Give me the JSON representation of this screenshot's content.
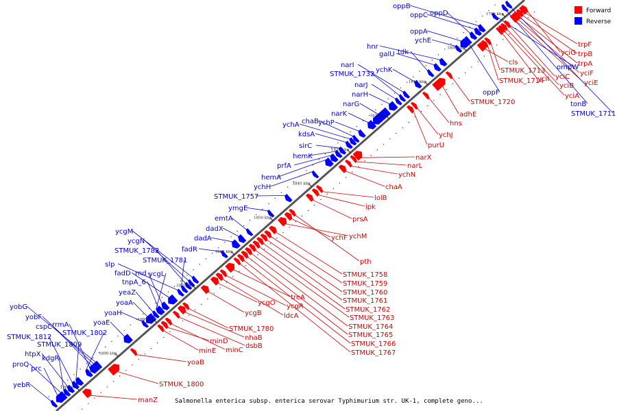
{
  "title": "Salmonella enterica subsp. enterica serovar Typhimurium str. UK-1, complete geno...",
  "legend": [
    {
      "label": "Forward",
      "color": "#ff0000"
    },
    {
      "label": "Reverse",
      "color": "#0000ff"
    }
  ],
  "colors": {
    "forward": "#ff0000",
    "reverse": "#0000ff",
    "label_forward": "#d40000",
    "label_reverse": "#0000d0",
    "backbone": "#555555"
  },
  "axis": {
    "start_kbp": 1785,
    "end_kbp": 1906,
    "ticks": [
      {
        "kbp": 1790,
        "label": "1790 kbp"
      },
      {
        "kbp": 1800,
        "label": "1800 kbp"
      },
      {
        "kbp": 1810,
        "label": "1810 kbp"
      },
      {
        "kbp": 1820,
        "label": "1820 kbp"
      },
      {
        "kbp": 1830,
        "label": "1830 kbp"
      },
      {
        "kbp": 1840,
        "label": "1840 kbp"
      },
      {
        "kbp": 1850,
        "label": "1850 kbp"
      },
      {
        "kbp": 1860,
        "label": "1860 kbp"
      },
      {
        "kbp": 1870,
        "label": "1870 kbp"
      },
      {
        "kbp": 1880,
        "label": "1880 kbp"
      },
      {
        "kbp": 1890,
        "label": "1890 kbp"
      },
      {
        "kbp": 1900,
        "label": "1900 kbp"
      }
    ]
  },
  "forward_genes": [
    {
      "name": "trpF",
      "kbp": 1786.5,
      "len": 0.6
    },
    {
      "name": "yciG",
      "kbp": 1786.0,
      "len": 0.4
    },
    {
      "name": "trpB",
      "kbp": 1787.2,
      "len": 0.8
    },
    {
      "name": "trpA",
      "kbp": 1787.9,
      "len": 0.8
    },
    {
      "name": "yciF",
      "kbp": 1788.4,
      "len": 0.5
    },
    {
      "name": "yciE",
      "kbp": 1788.9,
      "len": 0.5
    },
    {
      "name": "cls",
      "kbp": 1797.0,
      "len": 1.4
    },
    {
      "name": "yciC",
      "kbp": 1790.5,
      "len": 0.7
    },
    {
      "name": "yciB",
      "kbp": 1791.3,
      "len": 0.5
    },
    {
      "name": "yciA",
      "kbp": 1791.9,
      "len": 0.4
    },
    {
      "name": "yciI",
      "kbp": 1792.5,
      "len": 0.3
    },
    {
      "name": "STMUK_1713",
      "kbp": 1795.5,
      "len": 0.6
    },
    {
      "name": "STMUK_1714",
      "kbp": 1796.3,
      "len": 0.6
    },
    {
      "name": "STMUK_1720",
      "kbp": 1805.5,
      "len": 0.3
    },
    {
      "name": "adhE",
      "kbp": 1808.0,
      "len": 2.6
    },
    {
      "name": "hns",
      "kbp": 1811.5,
      "len": 0.4
    },
    {
      "name": "ychJ",
      "kbp": 1814.5,
      "len": 0.4
    },
    {
      "name": "purU",
      "kbp": 1815.5,
      "len": 0.8
    },
    {
      "name": "narX",
      "kbp": 1829.0,
      "len": 1.6
    },
    {
      "name": "narL",
      "kbp": 1830.2,
      "len": 0.6
    },
    {
      "name": "ychN",
      "kbp": 1831.5,
      "len": 0.4
    },
    {
      "name": "chaA",
      "kbp": 1833.0,
      "len": 1.0
    },
    {
      "name": "lolB",
      "kbp": 1839.0,
      "len": 0.6
    },
    {
      "name": "ipk",
      "kbp": 1840.0,
      "len": 0.8
    },
    {
      "name": "prsA",
      "kbp": 1841.5,
      "len": 0.9
    },
    {
      "name": "ychF",
      "kbp": 1847.0,
      "len": 1.0
    },
    {
      "name": "ychM",
      "kbp": 1848.5,
      "len": 1.4
    },
    {
      "name": "pth",
      "kbp": 1846.0,
      "len": 0.6
    },
    {
      "name": "STMUK_1758",
      "kbp": 1851.0,
      "len": 1.0
    },
    {
      "name": "STMUK_1759",
      "kbp": 1852.3,
      "len": 0.8
    },
    {
      "name": "STMUK_1760",
      "kbp": 1853.3,
      "len": 0.8
    },
    {
      "name": "STMUK_1761",
      "kbp": 1854.3,
      "len": 0.8
    },
    {
      "name": "STMUK_1762",
      "kbp": 1855.3,
      "len": 0.8
    },
    {
      "name": "STMUK_1763",
      "kbp": 1856.3,
      "len": 0.8
    },
    {
      "name": "STMUK_1764",
      "kbp": 1857.3,
      "len": 0.8
    },
    {
      "name": "STMUK_1765",
      "kbp": 1858.3,
      "len": 0.8
    },
    {
      "name": "STMUK_1766",
      "kbp": 1859.3,
      "len": 0.8
    },
    {
      "name": "STMUK_1767",
      "kbp": 1860.3,
      "len": 0.6
    },
    {
      "name": "treA",
      "kbp": 1862.0,
      "len": 1.6
    },
    {
      "name": "ycgR",
      "kbp": 1863.8,
      "len": 0.7
    },
    {
      "name": "ldcA",
      "kbp": 1864.8,
      "len": 0.9
    },
    {
      "name": "ycgO",
      "kbp": 1866.0,
      "len": 1.2
    },
    {
      "name": "ycgB",
      "kbp": 1868.5,
      "len": 1.2
    },
    {
      "name": "STMUK_1780",
      "kbp": 1873.5,
      "len": 0.5
    },
    {
      "name": "nhaB",
      "kbp": 1874.5,
      "len": 1.2
    },
    {
      "name": "dsbB",
      "kbp": 1876.0,
      "len": 0.5
    },
    {
      "name": "minC",
      "kbp": 1878.0,
      "len": 0.7
    },
    {
      "name": "minD",
      "kbp": 1879.0,
      "len": 0.8
    },
    {
      "name": "minE",
      "kbp": 1880.0,
      "len": 0.3
    },
    {
      "name": "yoaB",
      "kbp": 1887.0,
      "len": 0.4
    },
    {
      "name": "STMUK_1800",
      "kbp": 1892.0,
      "len": 2.2
    },
    {
      "name": "manZ",
      "kbp": 1899.0,
      "len": 1.5
    }
  ],
  "reverse_genes": [
    {
      "name": "oppB",
      "kbp": 1795.0,
      "len": 0.9
    },
    {
      "name": "oppC",
      "kbp": 1796.0,
      "len": 0.9
    },
    {
      "name": "oppD",
      "kbp": 1797.2,
      "len": 0.9
    },
    {
      "name": "oppA",
      "kbp": 1799.5,
      "len": 1.6
    },
    {
      "name": "ychE",
      "kbp": 1801.0,
      "len": 0.6
    },
    {
      "name": "oppF",
      "kbp": 1798.5,
      "len": 0.8
    },
    {
      "name": "ompW",
      "kbp": 1791.5,
      "len": 0.6
    },
    {
      "name": "tonB",
      "kbp": 1789.0,
      "len": 0.7
    },
    {
      "name": "STMUK_1711",
      "kbp": 1788.0,
      "len": 0.5
    },
    {
      "name": "hnr",
      "kbp": 1805.0,
      "len": 1.0
    },
    {
      "name": "galU",
      "kbp": 1806.5,
      "len": 0.9
    },
    {
      "name": "tdk",
      "kbp": 1808.2,
      "len": 0.6
    },
    {
      "name": "ychK",
      "kbp": 1811.5,
      "len": 0.9
    },
    {
      "name": "narI",
      "kbp": 1814.5,
      "len": 0.7
    },
    {
      "name": "STMUK_1732",
      "kbp": 1815.5,
      "len": 0.4
    },
    {
      "name": "narJ",
      "kbp": 1816.5,
      "len": 0.7
    },
    {
      "name": "narH",
      "kbp": 1818.0,
      "len": 1.5
    },
    {
      "name": "narG",
      "kbp": 1821.0,
      "len": 3.8
    },
    {
      "name": "narK",
      "kbp": 1823.5,
      "len": 1.4
    },
    {
      "name": "ychP",
      "kbp": 1826.0,
      "len": 0.9
    },
    {
      "name": "chaB",
      "kbp": 1827.5,
      "len": 0.3
    },
    {
      "name": "ychA",
      "kbp": 1828.3,
      "len": 0.8
    },
    {
      "name": "kdsA",
      "kbp": 1829.3,
      "len": 0.8
    },
    {
      "name": "sirC",
      "kbp": 1831.0,
      "len": 0.8
    },
    {
      "name": "hemK",
      "kbp": 1832.0,
      "len": 0.8
    },
    {
      "name": "prfA",
      "kbp": 1833.2,
      "len": 1.1
    },
    {
      "name": "hemA",
      "kbp": 1834.5,
      "len": 1.3
    },
    {
      "name": "ychH",
      "kbp": 1838.0,
      "len": 0.3
    },
    {
      "name": "STMUK_1757",
      "kbp": 1845.0,
      "len": 0.9
    },
    {
      "name": "ymgE",
      "kbp": 1849.5,
      "len": 0.3
    },
    {
      "name": "emtA",
      "kbp": 1855.0,
      "len": 0.6
    },
    {
      "name": "dadX",
      "kbp": 1857.0,
      "len": 1.1
    },
    {
      "name": "dadA",
      "kbp": 1858.6,
      "len": 1.3
    },
    {
      "name": "fadR",
      "kbp": 1861.5,
      "len": 0.7
    },
    {
      "name": "ycgM",
      "kbp": 1869.0,
      "len": 0.7
    },
    {
      "name": "ycgN",
      "kbp": 1870.0,
      "len": 0.4
    },
    {
      "name": "STMUK_1782",
      "kbp": 1870.8,
      "len": 0.6
    },
    {
      "name": "STMUK_1781",
      "kbp": 1871.8,
      "len": 0.7
    },
    {
      "name": "slp",
      "kbp": 1872.8,
      "len": 0.6
    },
    {
      "name": "fadD",
      "kbp": 1875.0,
      "len": 1.7
    },
    {
      "name": "rnd",
      "kbp": 1876.8,
      "len": 1.1
    },
    {
      "name": "tnpA_6",
      "kbp": 1877.8,
      "len": 0.4
    },
    {
      "name": "ycgL",
      "kbp": 1878.3,
      "len": 0.3
    },
    {
      "name": "yeaZ",
      "kbp": 1879.2,
      "len": 0.7
    },
    {
      "name": "yoaA",
      "kbp": 1880.6,
      "len": 1.9
    },
    {
      "name": "yoaH",
      "kbp": 1882.0,
      "len": 0.3
    },
    {
      "name": "yoaE",
      "kbp": 1886.5,
      "len": 1.5
    },
    {
      "name": "yobG",
      "kbp": 1894.0,
      "len": 0.3
    },
    {
      "name": "yobF",
      "kbp": 1894.5,
      "len": 0.3
    },
    {
      "name": "cspC",
      "kbp": 1895.0,
      "len": 0.3
    },
    {
      "name": "rrmA",
      "kbp": 1895.5,
      "len": 0.8
    },
    {
      "name": "STMUK_1802",
      "kbp": 1896.5,
      "len": 0.9
    },
    {
      "name": "STMUK_1812",
      "kbp": 1900.0,
      "len": 0.9
    },
    {
      "name": "STMUK_1809",
      "kbp": 1899.0,
      "len": 1.1
    },
    {
      "name": "htpX",
      "kbp": 1901.2,
      "len": 0.9
    },
    {
      "name": "kdgR",
      "kbp": 1902.2,
      "len": 0.8
    },
    {
      "name": "proQ",
      "kbp": 1903.0,
      "len": 0.7
    },
    {
      "name": "prc",
      "kbp": 1903.8,
      "len": 2.0
    },
    {
      "name": "yebR",
      "kbp": 1905.5,
      "len": 0.5
    }
  ]
}
